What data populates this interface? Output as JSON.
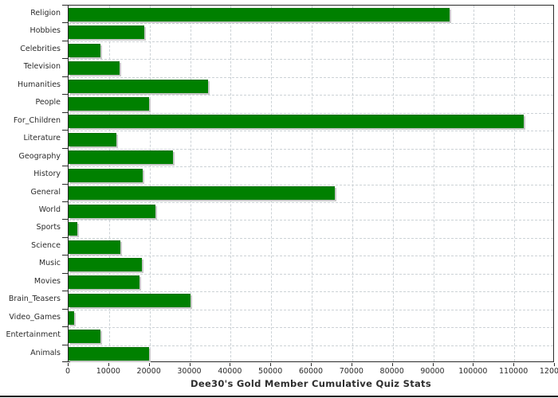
{
  "chart_data": {
    "type": "bar",
    "orientation": "horizontal",
    "title": "Dee30's Gold Member Cumulative Quiz Stats",
    "xlabel": "",
    "ylabel": "",
    "xlim": [
      0,
      120000
    ],
    "grid": "dashed-both-axes",
    "legend": "none",
    "categories": [
      "Religion",
      "Hobbies",
      "Celebrities",
      "Television",
      "Humanities",
      "People",
      "For_Children",
      "Literature",
      "Geography",
      "History",
      "General",
      "World",
      "Sports",
      "Science",
      "Music",
      "Movies",
      "Brain_Teasers",
      "Video_Games",
      "Entertainment",
      "Animals"
    ],
    "values": [
      94000,
      18700,
      7900,
      12600,
      34500,
      19800,
      112400,
      11800,
      25800,
      18300,
      65700,
      21500,
      2100,
      12800,
      18000,
      17600,
      30000,
      1300,
      7800,
      19800
    ],
    "x_ticks": [
      0,
      10000,
      20000,
      30000,
      40000,
      50000,
      60000,
      70000,
      80000,
      90000,
      100000,
      110000,
      120000
    ],
    "x_tick_labels": [
      "0",
      "10000",
      "20000",
      "30000",
      "40000",
      "50000",
      "60000",
      "70000",
      "80000",
      "90000",
      "100000",
      "110000",
      "120000"
    ],
    "colors": {
      "bar": "#008000",
      "bar_shadow": "#c9c9c9",
      "gridline": "#ccd2d6",
      "axis": "#2a2a2a",
      "text": "#2b2b2b",
      "background": "#ffffff"
    }
  }
}
